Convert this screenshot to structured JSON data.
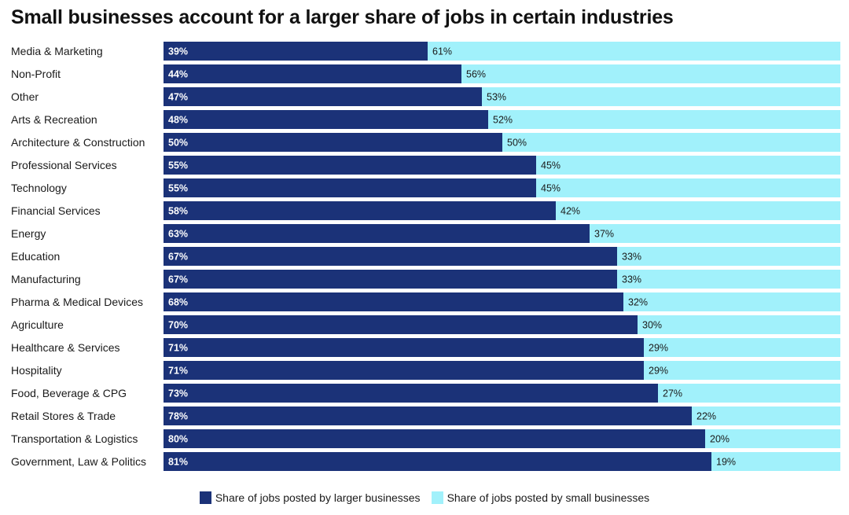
{
  "chart_data": {
    "type": "bar",
    "stacked": true,
    "orientation": "horizontal",
    "title": "Small businesses account for a larger share of jobs in certain industries",
    "xlim": [
      0,
      100
    ],
    "categories": [
      "Media & Marketing",
      "Non-Profit",
      "Other",
      "Arts & Recreation",
      "Architecture & Construction",
      "Professional Services",
      "Technology",
      "Financial Services",
      "Energy",
      "Education",
      "Manufacturing",
      "Pharma & Medical Devices",
      "Agriculture",
      "Healthcare & Services",
      "Hospitality",
      "Food, Beverage & CPG",
      "Retail Stores & Trade",
      "Transportation & Logistics",
      "Government, Law & Politics"
    ],
    "series": [
      {
        "name": "Share of jobs posted by larger businesses",
        "color": "#1b3278",
        "values": [
          39,
          44,
          47,
          48,
          50,
          55,
          55,
          58,
          63,
          67,
          67,
          68,
          70,
          71,
          71,
          73,
          78,
          80,
          81
        ],
        "labels": [
          "39%",
          "44%",
          "47%",
          "48%",
          "50%",
          "55%",
          "55%",
          "58%",
          "63%",
          "67%",
          "67%",
          "68%",
          "70%",
          "71%",
          "71%",
          "73%",
          "78%",
          "80%",
          "81%"
        ]
      },
      {
        "name": "Share of jobs posted by small businesses",
        "color": "#a1f1fb",
        "values": [
          61,
          56,
          53,
          52,
          50,
          45,
          45,
          42,
          37,
          33,
          33,
          32,
          30,
          29,
          29,
          27,
          22,
          20,
          19
        ],
        "labels": [
          "61%",
          "56%",
          "53%",
          "52%",
          "50%",
          "45%",
          "45%",
          "42%",
          "37%",
          "33%",
          "33%",
          "32%",
          "30%",
          "29%",
          "29%",
          "27%",
          "22%",
          "20%",
          "19%"
        ]
      }
    ],
    "legend_position": "bottom-center",
    "grid": false
  }
}
